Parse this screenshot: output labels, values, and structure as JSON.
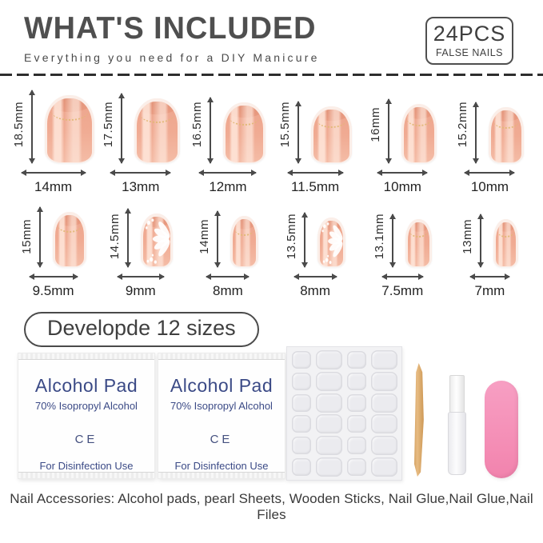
{
  "header": {
    "title": "WHAT'S INCLUDED",
    "subtitle": "Everything you need for a DIY Manicure",
    "badge": {
      "count": "24PCS",
      "label": "FALSE NAILS"
    }
  },
  "sizes_pill_label": "Developde 12 sizes",
  "nail_rows": [
    [
      {
        "h_mm": 18.5,
        "w_mm": 14,
        "h_label": "18.5mm",
        "w_label": "14mm",
        "design": "plain"
      },
      {
        "h_mm": 17.5,
        "w_mm": 13,
        "h_label": "17.5mm",
        "w_label": "13mm",
        "design": "plain"
      },
      {
        "h_mm": 16.5,
        "w_mm": 12,
        "h_label": "16.5mm",
        "w_label": "12mm",
        "design": "plain"
      },
      {
        "h_mm": 15.5,
        "w_mm": 11.5,
        "h_label": "15.5mm",
        "w_label": "11.5mm",
        "design": "plain"
      },
      {
        "h_mm": 16,
        "w_mm": 10,
        "h_label": "16mm",
        "w_label": "10mm",
        "design": "plain"
      },
      {
        "h_mm": 15.2,
        "w_mm": 10,
        "h_label": "15.2mm",
        "w_label": "10mm",
        "design": "plain"
      }
    ],
    [
      {
        "h_mm": 15,
        "w_mm": 9.5,
        "h_label": "15mm",
        "w_label": "9.5mm",
        "design": "plain"
      },
      {
        "h_mm": 14.5,
        "w_mm": 9,
        "h_label": "14.5mm",
        "w_label": "9mm",
        "design": "flower"
      },
      {
        "h_mm": 14,
        "w_mm": 8,
        "h_label": "14mm",
        "w_label": "8mm",
        "design": "plain"
      },
      {
        "h_mm": 13.5,
        "w_mm": 8,
        "h_label": "13.5mm",
        "w_label": "8mm",
        "design": "flower"
      },
      {
        "h_mm": 13.1,
        "w_mm": 7.5,
        "h_label": "13.1mm",
        "w_label": "7.5mm",
        "design": "plain"
      },
      {
        "h_mm": 13,
        "w_mm": 7,
        "h_label": "13mm",
        "w_label": "7mm",
        "design": "plain"
      }
    ]
  ],
  "alcohol_pad": {
    "title": "Alcohol Pad",
    "subtitle": "70% Isopropyl Alcohol",
    "ce_mark": "CE",
    "usage": "For Disinfection Use"
  },
  "adhesive_sheet": {
    "rows": 6,
    "cols": 4,
    "sticker_count": 24
  },
  "caption": "Nail Accessories: Alcohol pads, pearl Sheets, Wooden Sticks, Nail Glue,Nail Glue,Nail Files",
  "colors": {
    "heading": "#4f4f4f",
    "pad_text": "#3b4a86",
    "nail_base": "#f0ab93",
    "nail_bed": "#e89a80",
    "glitter_gold": "#e2b876",
    "file_pink": "#f48cb4",
    "stick_tan": "#d8a263",
    "dash": "#2e2e2e"
  }
}
